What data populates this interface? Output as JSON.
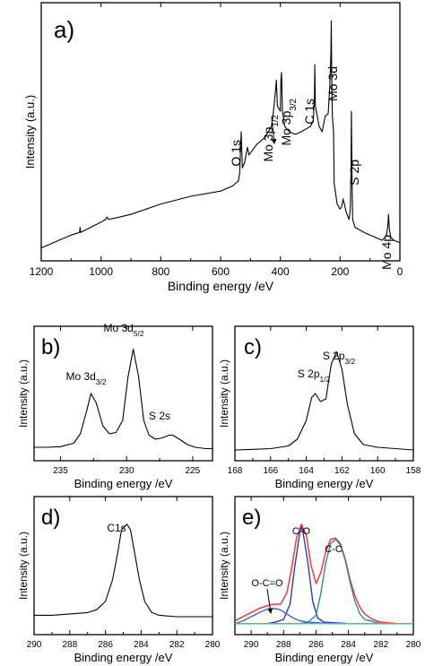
{
  "chart_data": [
    {
      "panel": "a)",
      "type": "line",
      "xlabel": "Binding energy /eV",
      "ylabel": "Intensity (a.u.)",
      "xlim": [
        1200,
        0
      ],
      "xticks": [
        1200,
        1000,
        800,
        600,
        400,
        200,
        0
      ],
      "ylim": [
        0,
        100
      ],
      "annotations": [
        {
          "text": "O 1s",
          "x": 531,
          "y": 60
        },
        {
          "text": "Mo 3p1/2",
          "x": 414,
          "y": 72
        },
        {
          "text": "Mo 3p3/2",
          "x": 396,
          "y": 74
        },
        {
          "text": "C 1s",
          "x": 284.6,
          "y": 76
        },
        {
          "text": "Mo 3d",
          "x": 229,
          "y": 93
        },
        {
          "text": "S 2p",
          "x": 162,
          "y": 60
        },
        {
          "text": "Mo 4p",
          "x": 38,
          "y": 20
        }
      ],
      "series": [
        {
          "values": [
            [
              1200,
              5
            ],
            [
              1100,
              10
            ],
            [
              1072,
              11
            ],
            [
              1070,
              13
            ],
            [
              1068,
              11
            ],
            [
              1000,
              15
            ],
            [
              985,
              16
            ],
            [
              980,
              17
            ],
            [
              975,
              16
            ],
            [
              900,
              18
            ],
            [
              800,
              22
            ],
            [
              700,
              25
            ],
            [
              600,
              27
            ],
            [
              560,
              29
            ],
            [
              540,
              31
            ],
            [
              536,
              34
            ],
            [
              531,
              50
            ],
            [
              527,
              36
            ],
            [
              520,
              38
            ],
            [
              510,
              44
            ],
            [
              505,
              41
            ],
            [
              480,
              45
            ],
            [
              450,
              48
            ],
            [
              430,
              52
            ],
            [
              424,
              57
            ],
            [
              416,
              66
            ],
            [
              413,
              70
            ],
            [
              410,
              60
            ],
            [
              400,
              58
            ],
            [
              398,
              70
            ],
            [
              396,
              73
            ],
            [
              393,
              58
            ],
            [
              385,
              52
            ],
            [
              370,
              50
            ],
            [
              350,
              49
            ],
            [
              330,
              50
            ],
            [
              300,
              52
            ],
            [
              290,
              54
            ],
            [
              286,
              63
            ],
            [
              284.6,
              76
            ],
            [
              283,
              60
            ],
            [
              270,
              52
            ],
            [
              260,
              50
            ],
            [
              250,
              56
            ],
            [
              240,
              57
            ],
            [
              235,
              67
            ],
            [
              232.5,
              74
            ],
            [
              231,
              80
            ],
            [
              229.5,
              93
            ],
            [
              228,
              70
            ],
            [
              226,
              56
            ],
            [
              222,
              50
            ],
            [
              220,
              30
            ],
            [
              210,
              22
            ],
            [
              200,
              20
            ],
            [
              195,
              21
            ],
            [
              190,
              24
            ],
            [
              180,
              19
            ],
            [
              170,
              16
            ],
            [
              166,
              20
            ],
            [
              163.5,
              35
            ],
            [
              162.3,
              58
            ],
            [
              160,
              30
            ],
            [
              158,
              16
            ],
            [
              150,
              13
            ],
            [
              120,
              11
            ],
            [
              80,
              9
            ],
            [
              60,
              8
            ],
            [
              50,
              9
            ],
            [
              45,
              10
            ],
            [
              40,
              14
            ],
            [
              38,
              18
            ],
            [
              35,
              12
            ],
            [
              30,
              9
            ],
            [
              20,
              8
            ],
            [
              0,
              7
            ]
          ]
        }
      ]
    },
    {
      "panel": "b)",
      "type": "line",
      "xlabel": "Binding energy /eV",
      "ylabel": "Intensity (a.u.)",
      "xlim": [
        237,
        223.5
      ],
      "xticks": [
        235,
        230,
        225
      ],
      "ylim": [
        0,
        100
      ],
      "annotations": [
        {
          "text": "Mo 3d3/2",
          "x": 232.7
        },
        {
          "text": "Mo 3d5/2",
          "x": 229.5
        },
        {
          "text": "S 2s",
          "x": 226.7
        }
      ],
      "series": [
        {
          "values": [
            [
              237,
              10
            ],
            [
              236,
              10
            ],
            [
              235,
              10.5
            ],
            [
              234,
              13
            ],
            [
              233.5,
              20
            ],
            [
              233,
              38
            ],
            [
              232.7,
              50
            ],
            [
              232.3,
              43
            ],
            [
              231.8,
              26
            ],
            [
              231.3,
              20
            ],
            [
              230.8,
              21
            ],
            [
              230.3,
              30
            ],
            [
              229.9,
              62
            ],
            [
              229.5,
              83
            ],
            [
              229.1,
              63
            ],
            [
              228.7,
              30
            ],
            [
              228.3,
              19
            ],
            [
              227.8,
              16
            ],
            [
              227.3,
              17
            ],
            [
              226.8,
              19
            ],
            [
              226.5,
              19
            ],
            [
              226,
              16
            ],
            [
              225.4,
              12
            ],
            [
              224.8,
              10
            ],
            [
              224,
              9
            ],
            [
              223.5,
              9
            ]
          ]
        }
      ]
    },
    {
      "panel": "c)",
      "type": "line",
      "xlabel": "Binding energy /eV",
      "ylabel": "Intensity (a.u.)",
      "xlim": [
        168,
        158
      ],
      "xticks": [
        168,
        166,
        164,
        162,
        160,
        158
      ],
      "ylim": [
        0,
        100
      ],
      "annotations": [
        {
          "text": "S 2p1/2",
          "x": 163.6
        },
        {
          "text": "S 2p3/2",
          "x": 162.3
        }
      ],
      "series": [
        {
          "values": [
            [
              168,
              8
            ],
            [
              167,
              8.5
            ],
            [
              166,
              9
            ],
            [
              165,
              11
            ],
            [
              164.5,
              16
            ],
            [
              164,
              30
            ],
            [
              163.7,
              47
            ],
            [
              163.5,
              50
            ],
            [
              163.2,
              44
            ],
            [
              162.9,
              46
            ],
            [
              162.6,
              72
            ],
            [
              162.3,
              81
            ],
            [
              162,
              68
            ],
            [
              161.7,
              42
            ],
            [
              161.3,
              20
            ],
            [
              160.8,
              12
            ],
            [
              160,
              10
            ],
            [
              159,
              9
            ],
            [
              158,
              8
            ]
          ]
        }
      ]
    },
    {
      "panel": "d)",
      "type": "line",
      "xlabel": "Binding energy /eV",
      "ylabel": "Intensity (a.u.)",
      "xlim": [
        290,
        280
      ],
      "xticks": [
        290,
        288,
        286,
        284,
        282,
        280
      ],
      "ylim": [
        0,
        100
      ],
      "annotations": [
        {
          "text": "C1s",
          "x": 284.8
        }
      ],
      "series": [
        {
          "values": [
            [
              290,
              14
            ],
            [
              289,
              14
            ],
            [
              288,
              15
            ],
            [
              287,
              16
            ],
            [
              286.5,
              18
            ],
            [
              286,
              24
            ],
            [
              285.6,
              40
            ],
            [
              285.3,
              60
            ],
            [
              285.1,
              76
            ],
            [
              284.8,
              80
            ],
            [
              284.6,
              76
            ],
            [
              284.4,
              62
            ],
            [
              284.1,
              40
            ],
            [
              283.8,
              24
            ],
            [
              283.4,
              16
            ],
            [
              283,
              14
            ],
            [
              282,
              13
            ],
            [
              281,
              13
            ],
            [
              280,
              13
            ]
          ]
        }
      ]
    },
    {
      "panel": "e)",
      "type": "line",
      "xlabel": "Binding energy /eV",
      "ylabel": "Intensity (a.u.)",
      "xlim": [
        291,
        280
      ],
      "xticks": [
        290,
        288,
        286,
        284,
        282,
        280
      ],
      "ylim": [
        0,
        100
      ],
      "annotations": [
        {
          "text": "C-O",
          "x": 286.9
        },
        {
          "text": "C-C",
          "x": 284.8
        },
        {
          "text": "O-C=O",
          "x": 288.6
        }
      ],
      "series": [
        {
          "values": [
            [
              291,
              10
            ],
            [
              290.5,
              13
            ],
            [
              290,
              16
            ],
            [
              289.5,
              19
            ],
            [
              289,
              21
            ],
            [
              288.6,
              22
            ],
            [
              288.2,
              22
            ],
            [
              287.8,
              30
            ],
            [
              287.5,
              48
            ],
            [
              287.2,
              70
            ],
            [
              286.9,
              80
            ],
            [
              286.6,
              72
            ],
            [
              286.3,
              50
            ],
            [
              286,
              37
            ],
            [
              285.7,
              45
            ],
            [
              285.4,
              60
            ],
            [
              285.1,
              69
            ],
            [
              284.8,
              70
            ],
            [
              284.5,
              66
            ],
            [
              284.2,
              55
            ],
            [
              283.9,
              40
            ],
            [
              283.6,
              28
            ],
            [
              283.3,
              20
            ],
            [
              283,
              15
            ],
            [
              282.5,
              11
            ],
            [
              282,
              9
            ],
            [
              281,
              8
            ],
            [
              280,
              8
            ]
          ],
          "color": "#ff2a2a"
        },
        {
          "values": [
            [
              291,
              8
            ],
            [
              290,
              8
            ],
            [
              289,
              8
            ],
            [
              288.5,
              9
            ],
            [
              288,
              11
            ],
            [
              287.6,
              22
            ],
            [
              287.3,
              50
            ],
            [
              287,
              74
            ],
            [
              286.9,
              78
            ],
            [
              286.8,
              74
            ],
            [
              286.5,
              52
            ],
            [
              286.2,
              24
            ],
            [
              285.9,
              12
            ],
            [
              285.5,
              9
            ],
            [
              284,
              8
            ],
            [
              282,
              8
            ],
            [
              280,
              8
            ]
          ],
          "color": "#2d3bbf"
        },
        {
          "values": [
            [
              291,
              8
            ],
            [
              289,
              8
            ],
            [
              287,
              8
            ],
            [
              286.5,
              9
            ],
            [
              286,
              14
            ],
            [
              285.7,
              30
            ],
            [
              285.4,
              52
            ],
            [
              285.1,
              66
            ],
            [
              284.8,
              69
            ],
            [
              284.5,
              65
            ],
            [
              284.2,
              54
            ],
            [
              283.9,
              38
            ],
            [
              283.6,
              24
            ],
            [
              283.3,
              15
            ],
            [
              283,
              11
            ],
            [
              282,
              8
            ],
            [
              280,
              8
            ]
          ],
          "color": "#2a8a9a"
        },
        {
          "values": [
            [
              291,
              8
            ],
            [
              290.5,
              10
            ],
            [
              290,
              13
            ],
            [
              289.5,
              16
            ],
            [
              289,
              18.5
            ],
            [
              288.6,
              19
            ],
            [
              288.2,
              18
            ],
            [
              287.8,
              15
            ],
            [
              287.4,
              12
            ],
            [
              287,
              10
            ],
            [
              286.5,
              9
            ],
            [
              285,
              8
            ],
            [
              280,
              8
            ]
          ],
          "color": "#4a5fd0"
        },
        {
          "values": [
            [
              291,
              8
            ],
            [
              288,
              8
            ],
            [
              285,
              8
            ],
            [
              282,
              8
            ],
            [
              280,
              8
            ]
          ],
          "color": "#3ccf5a"
        }
      ]
    }
  ]
}
